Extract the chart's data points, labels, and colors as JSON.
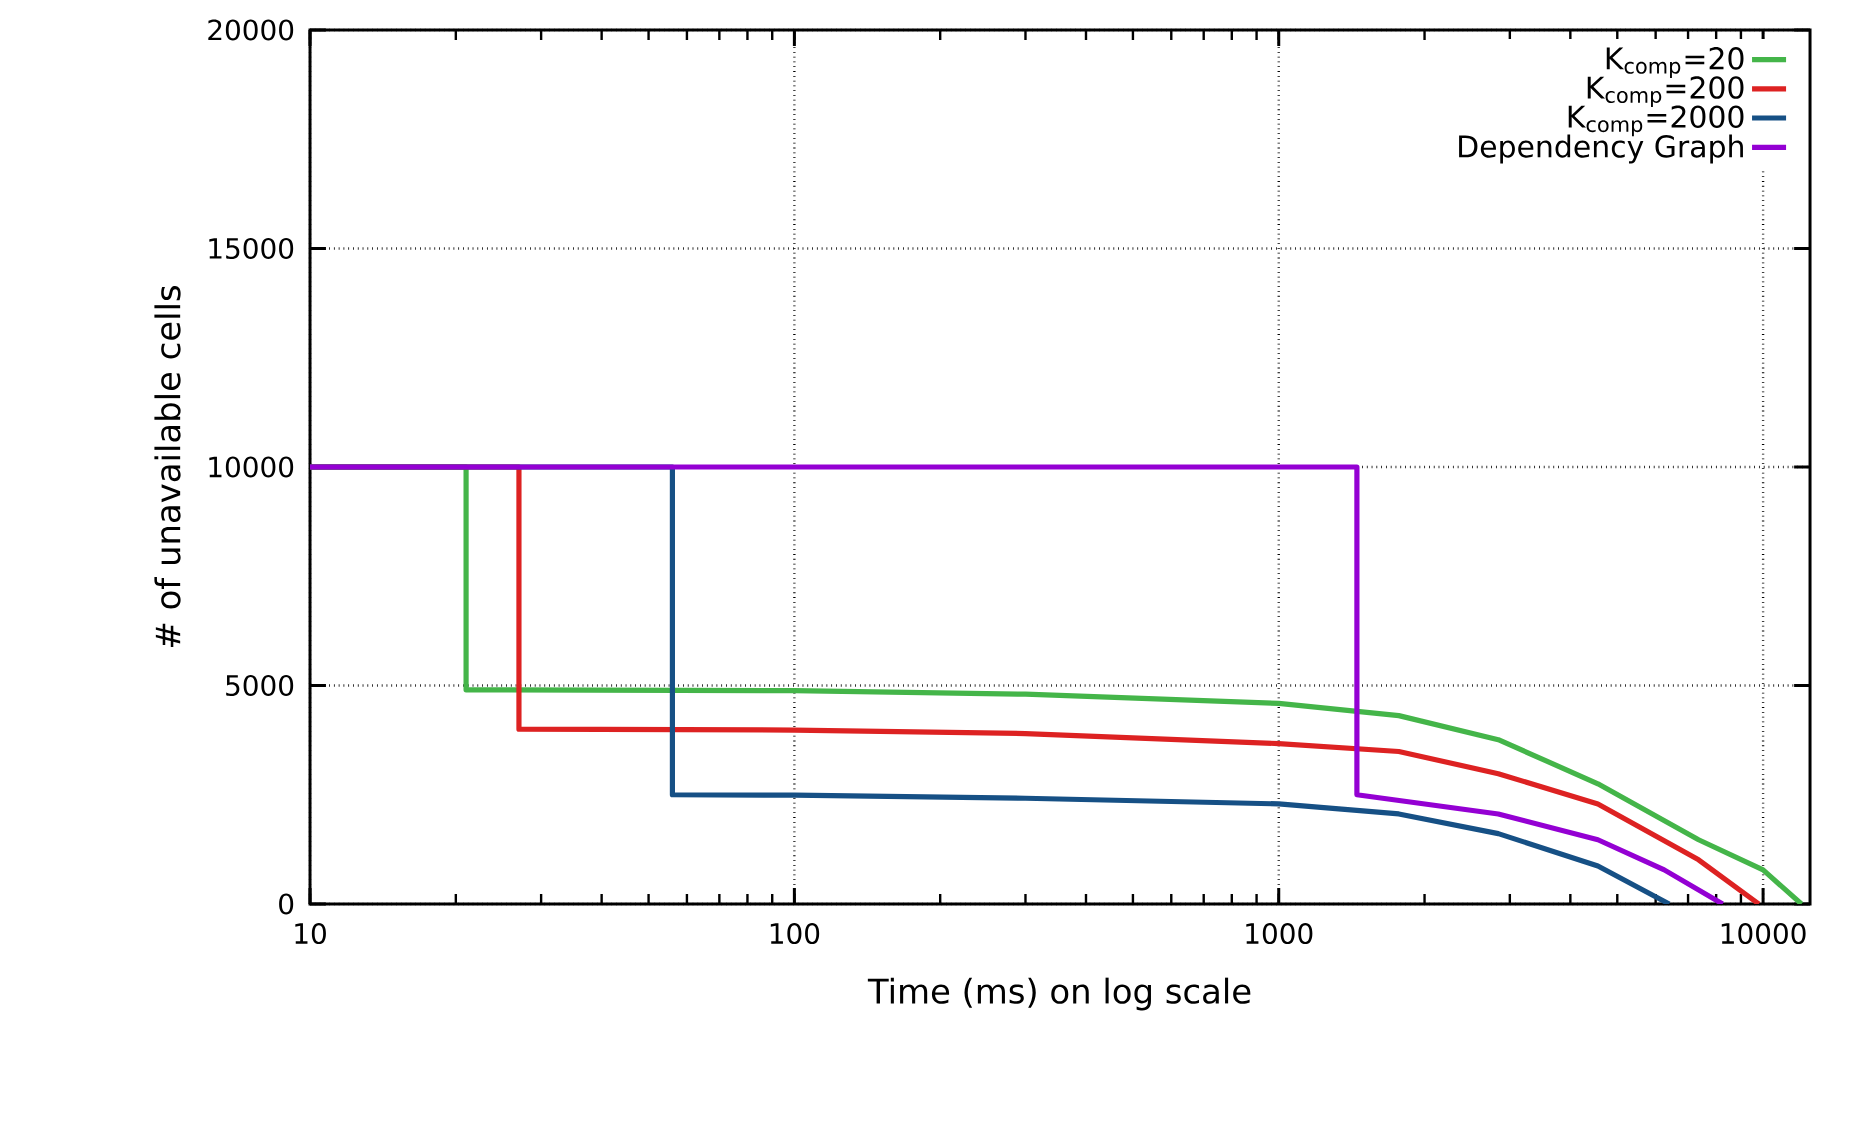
{
  "chart_data": {
    "type": "line",
    "xlabel": "Time (ms) on log scale",
    "ylabel": "# of unavailable cells",
    "log": "x",
    "grid": true,
    "legend": "top right",
    "marker": "none",
    "line_style": "solid",
    "xlim": [
      10,
      12500
    ],
    "ylim": [
      0,
      20000
    ],
    "xticks": [
      10,
      100,
      1000,
      10000
    ],
    "yticks": [
      0,
      5000,
      10000,
      15000,
      20000
    ],
    "series": [
      {
        "name": "K$_{comp}$=20",
        "color": "#44b549",
        "x": [
          10,
          21,
          21,
          100,
          300,
          1000,
          1770,
          2840,
          4560,
          7360,
          10000,
          12000
        ],
        "values": [
          10000,
          10000,
          4900,
          4880,
          4800,
          4590,
          4310,
          3760,
          2750,
          1470,
          780,
          0
        ]
      },
      {
        "name": "K$_{comp}$=200",
        "color": "#dd2222",
        "x": [
          10,
          27,
          27,
          100,
          300,
          1000,
          1770,
          2840,
          4560,
          7360,
          9800
        ],
        "values": [
          10000,
          10000,
          4000,
          3980,
          3900,
          3670,
          3490,
          2980,
          2290,
          1010,
          0
        ]
      },
      {
        "name": "K$_{comp}$=2000",
        "color": "#165085",
        "x": [
          10,
          56,
          56,
          100,
          300,
          1000,
          1770,
          2840,
          4560,
          6400
        ],
        "values": [
          10000,
          10000,
          2500,
          2490,
          2420,
          2290,
          2060,
          1610,
          870,
          0
        ]
      },
      {
        "name": "Dependency Graph",
        "color": "#9400d3",
        "x": [
          10,
          1450,
          1450,
          2840,
          4560,
          6250,
          8250
        ],
        "values": [
          10000,
          10000,
          2500,
          2060,
          1470,
          780,
          0
        ]
      }
    ]
  }
}
